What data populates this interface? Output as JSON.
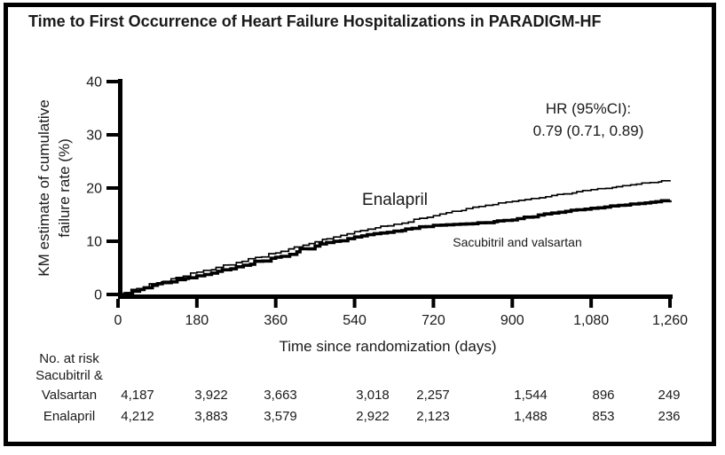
{
  "figure_title": "Time to First Occurrence of Heart Failure Hospitalizations in PARADIGM-HF",
  "chart_data": {
    "type": "line",
    "subtype": "kaplan_meier_step",
    "title": "Time to First Occurrence of Heart Failure Hospitalizations in PARADIGM-HF",
    "xlabel": "Time since randomization (days)",
    "ylabel": "KM estimate of cumulative failure rate (%)",
    "ylabel_lines": [
      "KM estimate of cumulative",
      "failure rate (%)"
    ],
    "xlim": [
      0,
      1260
    ],
    "ylim": [
      0,
      40
    ],
    "grid": false,
    "legend": "inline-labels",
    "x_ticks": [
      0,
      180,
      360,
      540,
      720,
      900,
      1080,
      1260
    ],
    "x_tick_labels": [
      "0",
      "180",
      "360",
      "540",
      "720",
      "900",
      "1,080",
      "1,260"
    ],
    "y_ticks": [
      0,
      10,
      20,
      30,
      40
    ],
    "y_tick_labels": [
      "0",
      "10",
      "20",
      "30",
      "40"
    ],
    "annotation": {
      "lines": [
        "HR (95%CI):",
        "0.79 (0.71, 0.89)"
      ]
    },
    "x_days": [
      0,
      90,
      180,
      270,
      360,
      450,
      540,
      630,
      720,
      810,
      900,
      990,
      1080,
      1170,
      1260
    ],
    "series": [
      {
        "name": "Enalapril",
        "style": "thin",
        "values_pct": [
          0,
          2.2,
          4.2,
          6.0,
          7.8,
          9.9,
          11.8,
          13.2,
          14.8,
          16.4,
          17.5,
          18.6,
          19.7,
          20.6,
          21.5
        ]
      },
      {
        "name": "Sacubitril and valsartan",
        "style": "thick",
        "values_pct": [
          0,
          2.0,
          3.5,
          5.2,
          7.0,
          9.1,
          10.8,
          11.9,
          13.0,
          13.3,
          14.0,
          15.3,
          16.2,
          17.0,
          17.7
        ]
      }
    ],
    "colors": {
      "curves": "#000000",
      "text": "#1a1a1a",
      "background": "#ffffff",
      "frame_border": "#000000"
    }
  },
  "risk_table": {
    "heading": "No. at risk",
    "rows": [
      {
        "label_lines": [
          "Sacubitril &",
          "Valsartan"
        ],
        "values": [
          "4,187",
          "3,922",
          "3,663",
          "3,018",
          "2,257",
          "1,544",
          "896",
          "249"
        ]
      },
      {
        "label_lines": [
          "Enalapril"
        ],
        "values": [
          "4,212",
          "3,883",
          "3,579",
          "2,922",
          "2,123",
          "1,488",
          "853",
          "236"
        ]
      }
    ]
  }
}
